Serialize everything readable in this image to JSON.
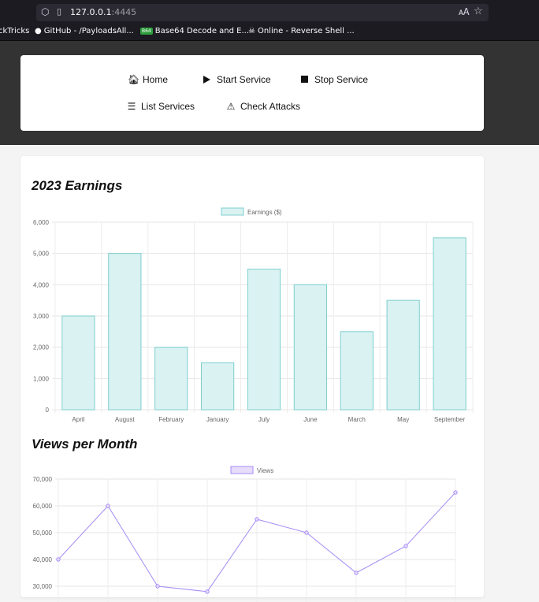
{
  "browser": {
    "url_host": "127.0.0.1",
    "url_port": ":4445",
    "bookmarks": [
      {
        "label": "ckTricks",
        "icon": "none"
      },
      {
        "label": "GitHub - /PayloadsAll...",
        "icon": "github-icon"
      },
      {
        "label": "Base64 Decode and E...",
        "icon": "b64-icon",
        "icon_text": "B64"
      },
      {
        "label": "Online - Reverse Shell ...",
        "icon": "skull-icon"
      }
    ]
  },
  "nav": {
    "home": {
      "label": "Home",
      "icon": "home-icon"
    },
    "start": {
      "label": "Start Service",
      "icon": "play-icon"
    },
    "stop": {
      "label": "Stop Service",
      "icon": "stop-icon"
    },
    "list": {
      "label": "List Services",
      "icon": "list-icon"
    },
    "check": {
      "label": "Check Attacks",
      "icon": "warning-icon"
    }
  },
  "charts": {
    "earnings_title": "2023 Earnings",
    "views_title": "Views per Month"
  },
  "chart_data": [
    {
      "type": "bar",
      "title": "2023 Earnings",
      "categories": [
        "April",
        "August",
        "February",
        "January",
        "July",
        "June",
        "March",
        "May",
        "September"
      ],
      "series": [
        {
          "name": "Earnings ($)",
          "values": [
            3000,
            5000,
            2000,
            1500,
            4500,
            4000,
            2500,
            3500,
            5500
          ]
        }
      ],
      "ylim": [
        0,
        6000
      ],
      "yticks": [
        "0",
        "1,000",
        "2,000",
        "3,000",
        "4,000",
        "5,000",
        "6,000"
      ],
      "legend": "top-center",
      "grid": true,
      "colors": {
        "fill": "#daf2f2",
        "stroke": "#7fcfcf"
      }
    },
    {
      "type": "line",
      "title": "Views per Month",
      "categories": [
        "",
        "",
        "",
        "",
        "",
        "",
        "",
        "",
        ""
      ],
      "series": [
        {
          "name": "Views",
          "values": [
            40000,
            60000,
            30000,
            28000,
            55000,
            50000,
            35000,
            45000,
            65000
          ]
        }
      ],
      "ylim": [
        30000,
        70000
      ],
      "yticks": [
        "30,000",
        "40,000",
        "50,000",
        "60,000",
        "70,000"
      ],
      "legend": "top-center",
      "grid": true,
      "colors": {
        "fill": "#e8dcfb",
        "stroke": "#a58cf5"
      }
    }
  ]
}
